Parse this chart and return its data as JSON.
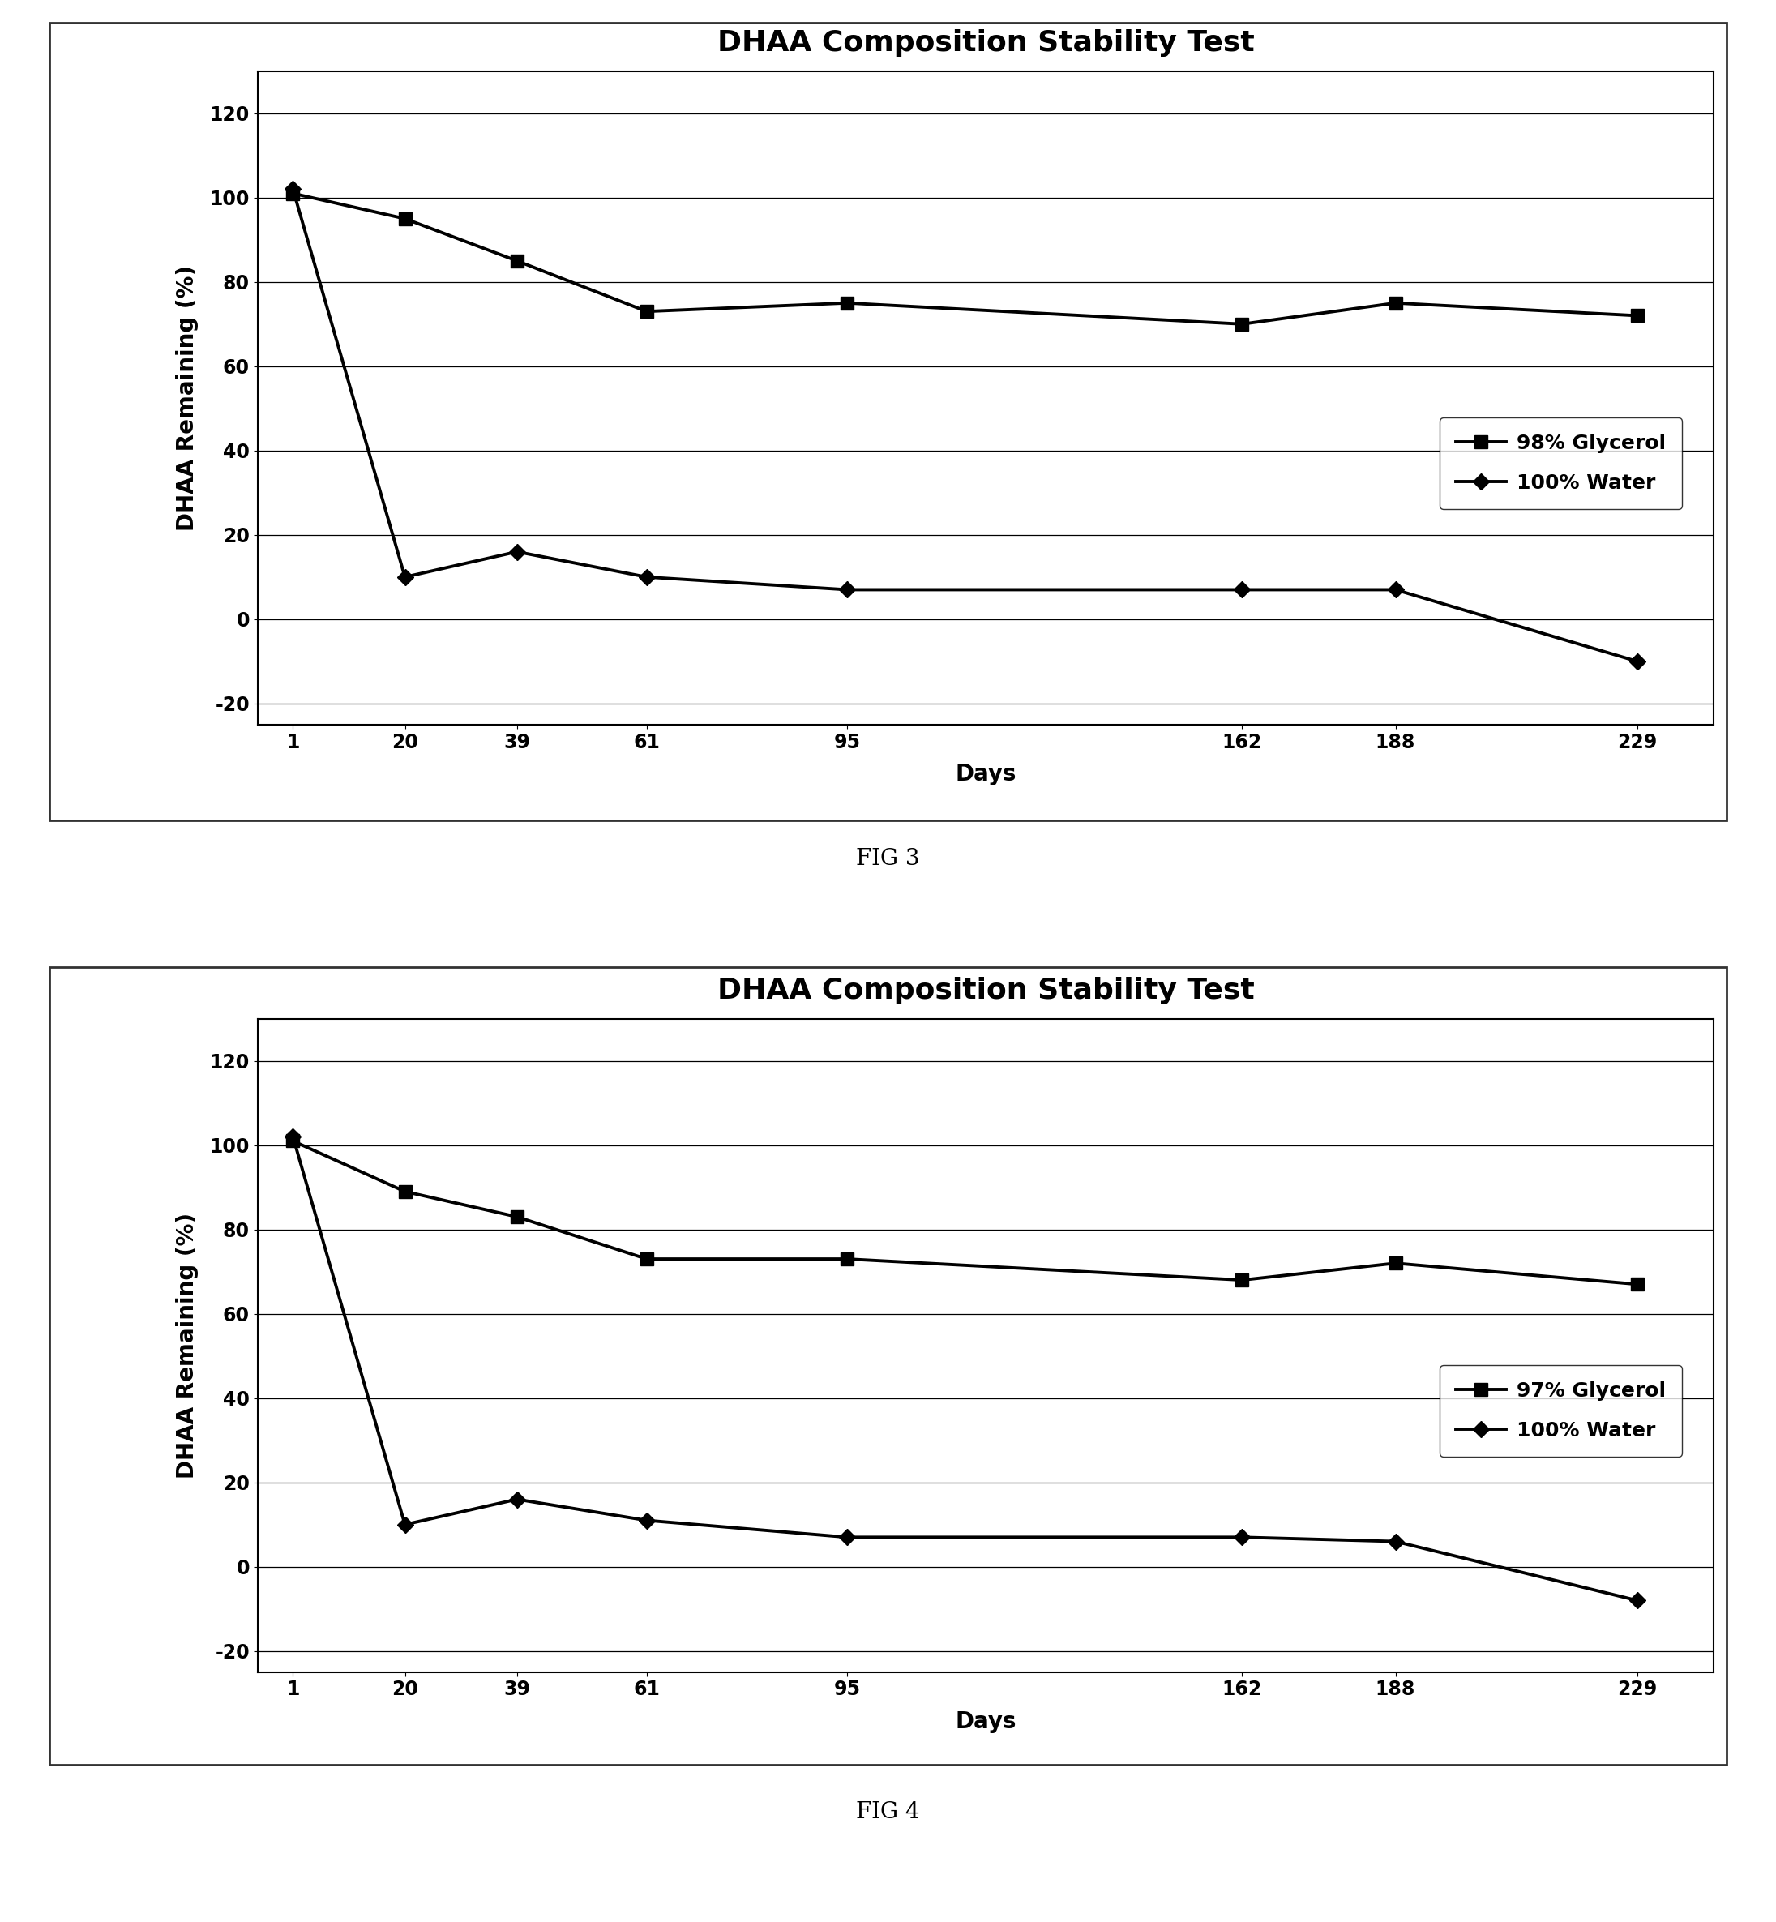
{
  "title": "DHAA Composition Stability Test",
  "xlabel": "Days",
  "ylabel": "DHAA Remaining (%)",
  "x_values": [
    1,
    20,
    39,
    61,
    95,
    162,
    188,
    229
  ],
  "fig3": {
    "glycerol_label": "98% Glycerol",
    "water_label": "100% Water",
    "glycerol_y": [
      101,
      95,
      85,
      73,
      75,
      70,
      75,
      72
    ],
    "water_y": [
      102,
      10,
      16,
      10,
      7,
      7,
      7,
      -10
    ]
  },
  "fig4": {
    "glycerol_label": "97% Glycerol",
    "water_label": "100% Water",
    "glycerol_y": [
      101,
      89,
      83,
      73,
      73,
      68,
      72,
      67
    ],
    "water_y": [
      102,
      10,
      16,
      11,
      7,
      7,
      6,
      -8
    ]
  },
  "ylim": [
    -25,
    130
  ],
  "yticks": [
    -20,
    0,
    20,
    40,
    60,
    80,
    100,
    120
  ],
  "fig3_caption": "FIG 3",
  "fig4_caption": "FIG 4",
  "line_color": "#000000",
  "bg_color": "#ffffff",
  "plot_bg": "#ffffff",
  "border_color": "#333333",
  "title_fontsize": 26,
  "axis_label_fontsize": 20,
  "tick_fontsize": 17,
  "legend_fontsize": 18,
  "caption_fontsize": 20,
  "marker_square_size": 11,
  "marker_diamond_size": 10,
  "line_width": 2.8
}
